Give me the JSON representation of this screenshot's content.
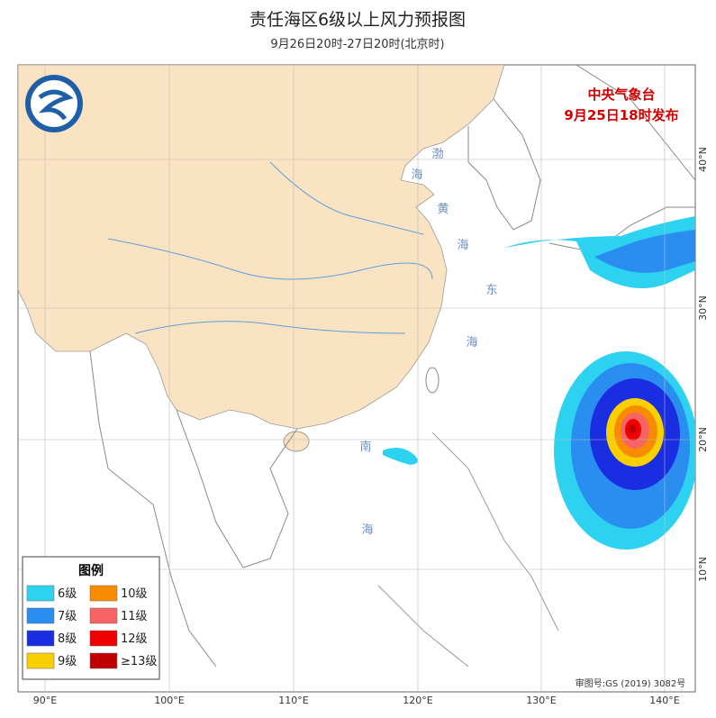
{
  "header": {
    "title": "责任海区6级以上风力预报图",
    "subtitle": "9月26日20时-27日20时(北京时)"
  },
  "issuer": {
    "name": "中央气象台",
    "time": "9月25日18时发布"
  },
  "legend": {
    "title": "图例",
    "items": [
      {
        "label": "6级",
        "color": "#2dd2f0"
      },
      {
        "label": "10级",
        "color": "#f88c00"
      },
      {
        "label": "7级",
        "color": "#2a8df0"
      },
      {
        "label": "11级",
        "color": "#f86464"
      },
      {
        "label": "8级",
        "color": "#1a2de0"
      },
      {
        "label": "12级",
        "color": "#f00000"
      },
      {
        "label": "9级",
        "color": "#f8d000"
      },
      {
        "label": "≥13级",
        "color": "#c00000"
      }
    ]
  },
  "lon_labels": [
    "90°E",
    "100°E",
    "110°E",
    "120°E",
    "130°E",
    "140°E"
  ],
  "lat_labels": [
    "40°N",
    "30°N",
    "20°N",
    "10°N"
  ],
  "sea_labels": [
    "渤",
    "海",
    "黄",
    "海",
    "东",
    "海",
    "南",
    "海"
  ],
  "approval": "审图号:GS (2019) 3082号"
}
